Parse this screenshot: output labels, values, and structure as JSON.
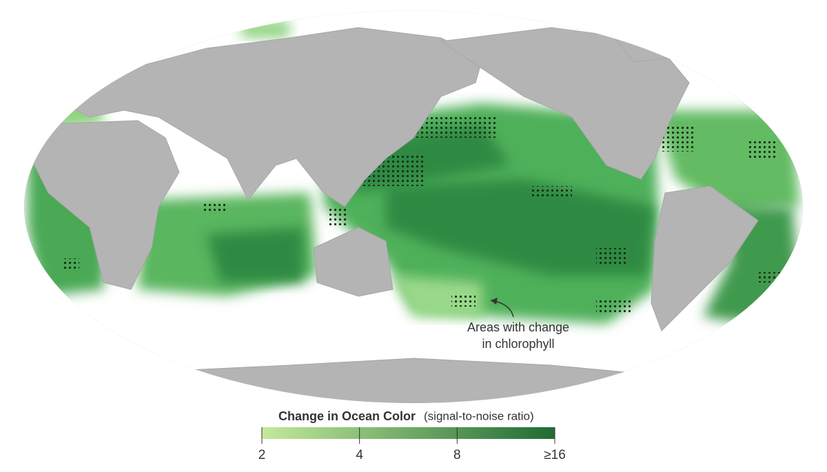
{
  "map": {
    "annotation": [
      "Areas with change",
      "in chlorophyll"
    ]
  },
  "legend": {
    "title": "Change in Ocean Color",
    "subtitle": "(signal-to-noise ratio)",
    "scale": "log",
    "lim": [
      2,
      16
    ],
    "ticks": [
      2,
      4,
      8,
      {
        "value": 16,
        "label": "≥16"
      }
    ],
    "colors": [
      "#c3ea9a",
      "#1f6b34"
    ]
  }
}
